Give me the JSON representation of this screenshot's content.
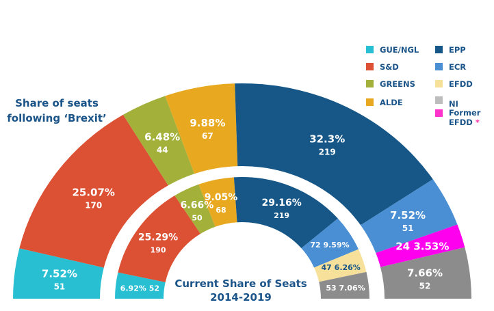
{
  "chart_data": {
    "type": "pie",
    "subtype": "nested-semicircle-donut",
    "series": [
      {
        "name": "Share of seats following 'Brexit'",
        "ring": "outer",
        "segments": [
          {
            "party": "GUE/NGL",
            "percent": 7.52,
            "seats": 51,
            "color": "#29bfd3",
            "pct_label": "7.52%",
            "seat_label": "51"
          },
          {
            "party": "S&D",
            "percent": 25.07,
            "seats": 170,
            "color": "#dc5034",
            "pct_label": "25.07%",
            "seat_label": "170"
          },
          {
            "party": "GREENS",
            "percent": 6.48,
            "seats": 44,
            "color": "#a3b03a",
            "pct_label": "6.48%",
            "seat_label": "44"
          },
          {
            "party": "ALDE",
            "percent": 9.88,
            "seats": 67,
            "color": "#e8a921",
            "pct_label": "9.88%",
            "seat_label": "67"
          },
          {
            "party": "EPP",
            "percent": 32.3,
            "seats": 219,
            "color": "#165787",
            "pct_label": "32.3%",
            "seat_label": "219"
          },
          {
            "party": "ECR",
            "percent": 7.52,
            "seats": 51,
            "color": "#4a8fd4",
            "pct_label": "7.52%",
            "seat_label": "51"
          },
          {
            "party": "Former EFDD",
            "percent": 3.53,
            "seats": 24,
            "color": "#ff00ee",
            "pct_label": "3.53%",
            "seat_label": "24"
          },
          {
            "party": "NI",
            "percent": 7.66,
            "seats": 52,
            "color": "#8c8c8c",
            "pct_label": "7.66%",
            "seat_label": "52"
          }
        ]
      },
      {
        "name": "Current Share of Seats 2014-2019",
        "ring": "inner",
        "segments": [
          {
            "party": "GUE/NGL",
            "percent": 6.92,
            "seats": 52,
            "color": "#29bfd3",
            "pct_label": "6.92%",
            "seat_label": "52"
          },
          {
            "party": "S&D",
            "percent": 25.29,
            "seats": 190,
            "color": "#dc5034",
            "pct_label": "25.29%",
            "seat_label": "190"
          },
          {
            "party": "GREENS",
            "percent": 6.66,
            "seats": 50,
            "color": "#a3b03a",
            "pct_label": "6.66%",
            "seat_label": "50"
          },
          {
            "party": "ALDE",
            "percent": 9.05,
            "seats": 68,
            "color": "#e8a921",
            "pct_label": "9.05%",
            "seat_label": "68"
          },
          {
            "party": "EPP",
            "percent": 29.16,
            "seats": 219,
            "color": "#165787",
            "pct_label": "29.16%",
            "seat_label": "219"
          },
          {
            "party": "ECR",
            "percent": 9.59,
            "seats": 72,
            "color": "#4a8fd4",
            "pct_label": "9.59%",
            "seat_label": "72"
          },
          {
            "party": "EFDD",
            "percent": 6.26,
            "seats": 47,
            "color": "#f7e19a",
            "pct_label": "6.26%",
            "seat_label": "47"
          },
          {
            "party": "NI",
            "percent": 7.06,
            "seats": 53,
            "color": "#8c8c8c",
            "pct_label": "7.06%",
            "seat_label": "53"
          }
        ]
      }
    ],
    "titles": {
      "outer": [
        "Share of seats",
        "following ‘Brexit’"
      ],
      "inner": [
        "Current Share of Seats",
        "2014-2019"
      ]
    },
    "legend": {
      "placement": "top-right",
      "items": [
        {
          "label": "GUE/NGL",
          "color": "#29bfd3"
        },
        {
          "label": "S&D",
          "color": "#dc5034"
        },
        {
          "label": "GREENS",
          "color": "#a3b03a"
        },
        {
          "label": "ALDE",
          "color": "#e8a921"
        },
        {
          "label": "EPP",
          "color": "#165787"
        },
        {
          "label": "ECR",
          "color": "#4a8fd4"
        },
        {
          "label": "EFDD",
          "color": "#f7e19a"
        },
        {
          "label": "NI",
          "color": "#bdbdbd"
        },
        {
          "label": "Former",
          "label2": "EFDD",
          "marker": "*",
          "color": "#ff33cc"
        }
      ]
    }
  }
}
